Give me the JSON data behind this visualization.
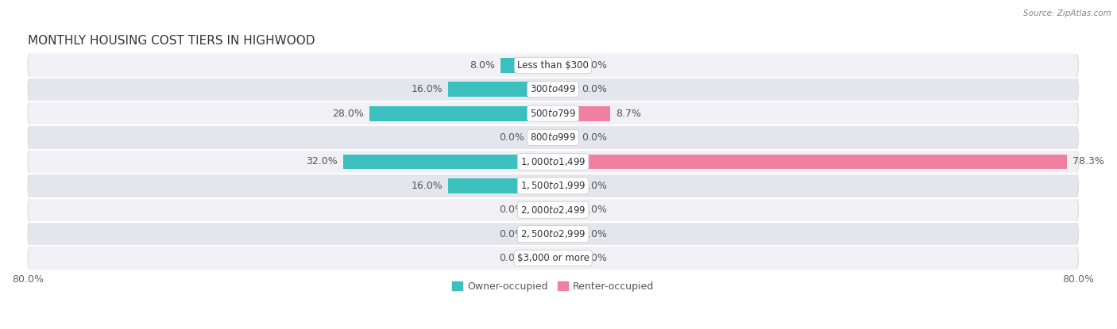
{
  "title": "MONTHLY HOUSING COST TIERS IN HIGHWOOD",
  "source": "Source: ZipAtlas.com",
  "categories": [
    "Less than $300",
    "$300 to $499",
    "$500 to $799",
    "$800 to $999",
    "$1,000 to $1,499",
    "$1,500 to $1,999",
    "$2,000 to $2,499",
    "$2,500 to $2,999",
    "$3,000 or more"
  ],
  "owner_values": [
    8.0,
    16.0,
    28.0,
    0.0,
    32.0,
    16.0,
    0.0,
    0.0,
    0.0
  ],
  "renter_values": [
    0.0,
    0.0,
    8.7,
    0.0,
    78.3,
    0.0,
    0.0,
    0.0,
    0.0
  ],
  "owner_color": "#3BBFBF",
  "renter_color": "#F080A0",
  "owner_color_zero": "#A8DDE0",
  "renter_color_zero": "#F5B8CC",
  "row_bg_color_light": "#F0F0F5",
  "row_bg_color_dark": "#E5E5EE",
  "max_value": 80.0,
  "bar_height": 0.62,
  "stub_size": 3.5,
  "title_fontsize": 11,
  "tick_fontsize": 9,
  "label_fontsize": 9,
  "legend_fontsize": 9,
  "category_fontsize": 8.5
}
